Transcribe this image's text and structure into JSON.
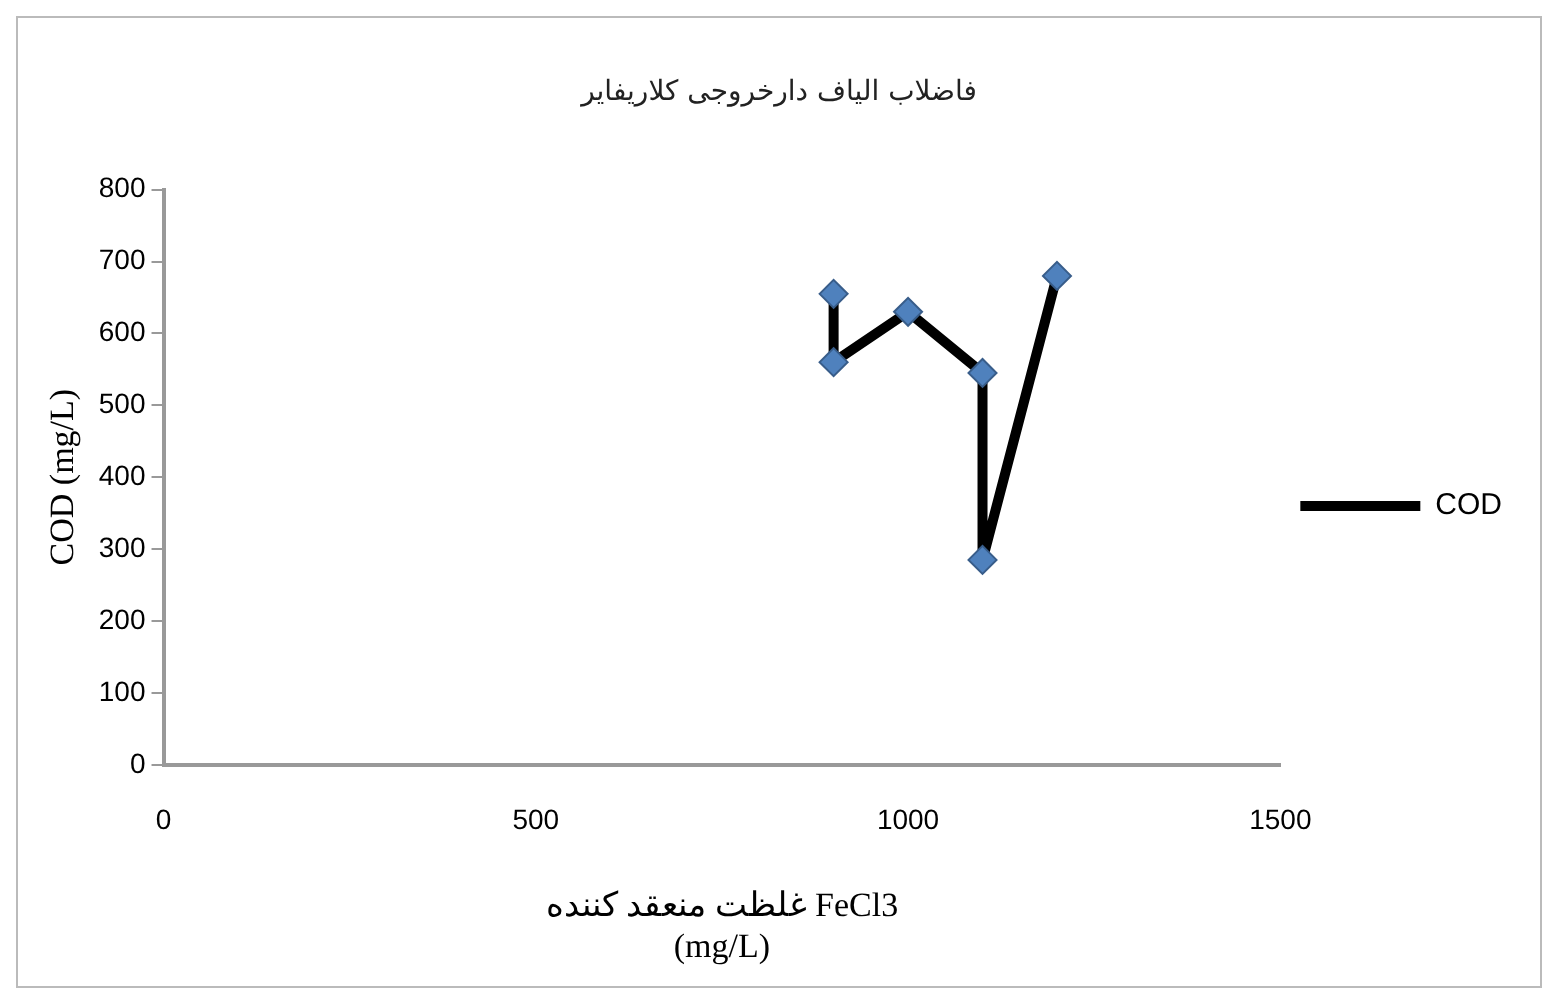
{
  "chart_data": {
    "type": "line",
    "title": "فاضلاب الیاف دارخروجی کلاریفایر",
    "xlabel": "غلظت منعقد کننده FeCl3\n(mg/L)",
    "ylabel": "COD (mg/L)",
    "x": [
      900,
      900,
      1000,
      1100,
      1100,
      1200
    ],
    "series": [
      {
        "name": "COD",
        "color": "#4f81bd",
        "values": [
          655,
          560,
          630,
          545,
          285,
          680
        ]
      }
    ],
    "xlim": [
      0,
      1500
    ],
    "xticks": [
      0,
      500,
      1000,
      1500
    ],
    "ylim": [
      0,
      800
    ],
    "yticks": [
      0,
      100,
      200,
      300,
      400,
      500,
      600,
      700,
      800
    ],
    "grid": false,
    "legend": "right",
    "marker": "diamond",
    "line_style": "solid"
  }
}
